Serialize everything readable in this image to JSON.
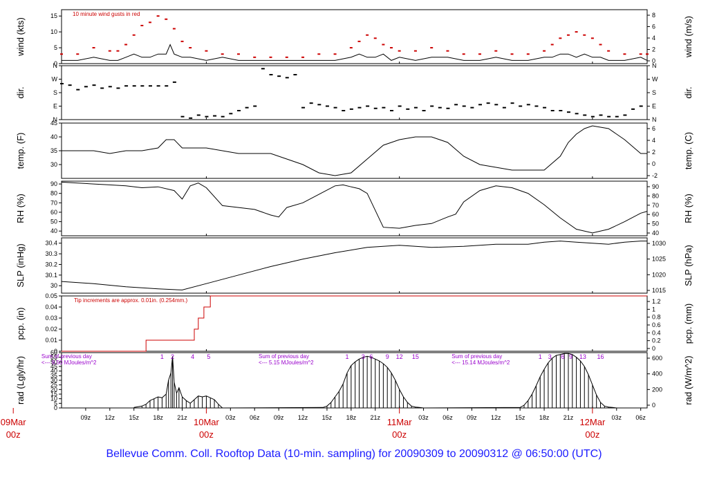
{
  "footer": "Bellevue Comm. Coll. Rooftop Data (10-min. sampling) for 20090309  to  20090312 @ 06:50:00  (UTC)",
  "colors": {
    "axis": "#000000",
    "gust": "#cc0000",
    "pcp": "#cc0000",
    "note": "#cc0000",
    "rad_note": "#9900cc",
    "date": "#cc0000",
    "footer": "#1a1aff"
  },
  "time_axis": {
    "start_hour": 6,
    "end_hour": 78.8,
    "hour_labels": [
      {
        "h": 9,
        "t": "09z"
      },
      {
        "h": 12,
        "t": "12z"
      },
      {
        "h": 15,
        "t": "15z"
      },
      {
        "h": 18,
        "t": "18z"
      },
      {
        "h": 21,
        "t": "21z"
      },
      {
        "h": 27,
        "t": "03z"
      },
      {
        "h": 30,
        "t": "06z"
      },
      {
        "h": 33,
        "t": "09z"
      },
      {
        "h": 36,
        "t": "12z"
      },
      {
        "h": 39,
        "t": "15z"
      },
      {
        "h": 42,
        "t": "18z"
      },
      {
        "h": 45,
        "t": "21z"
      },
      {
        "h": 51,
        "t": "03z"
      },
      {
        "h": 54,
        "t": "06z"
      },
      {
        "h": 57,
        "t": "09z"
      },
      {
        "h": 60,
        "t": "12z"
      },
      {
        "h": 63,
        "t": "15z"
      },
      {
        "h": 66,
        "t": "18z"
      },
      {
        "h": 69,
        "t": "21z"
      },
      {
        "h": 75,
        "t": "03z"
      },
      {
        "h": 78,
        "t": "06z"
      }
    ],
    "date_labels": [
      {
        "h": 0,
        "d": "09Mar",
        "z": "00z"
      },
      {
        "h": 24,
        "d": "10Mar",
        "z": "00z"
      },
      {
        "h": 48,
        "d": "11Mar",
        "z": "00z"
      },
      {
        "h": 72,
        "d": "12Mar",
        "z": "00z"
      }
    ]
  },
  "chart_data": [
    {
      "type": "line",
      "id": "wind",
      "ylabel": "wind (kts)",
      "ylabel2": "wind (m/s)",
      "annotation": "10  minute wind gusts in red",
      "ylim": [
        0,
        17
      ],
      "yticks": [
        0,
        5,
        10,
        15
      ],
      "y2ticks": [
        0,
        2,
        4,
        6,
        8
      ],
      "series": [
        {
          "x": [
            6,
            8,
            10,
            12,
            13,
            14,
            15,
            16,
            17,
            18,
            19,
            19.5,
            20,
            21,
            22,
            24,
            26,
            28,
            30,
            32,
            34,
            36,
            38,
            40,
            42,
            43,
            44,
            45,
            46,
            47,
            48,
            50,
            52,
            54,
            56,
            58,
            60,
            62,
            64,
            66,
            67,
            68,
            69,
            70,
            71,
            72,
            73,
            74,
            76,
            78,
            78.8
          ],
          "y": [
            1,
            1,
            2,
            1,
            1,
            2,
            3,
            2,
            2,
            3,
            3,
            6,
            3,
            2,
            2,
            1,
            2,
            1,
            1,
            1,
            1,
            1,
            1,
            1,
            2,
            3,
            2,
            2,
            3,
            1,
            2,
            1,
            2,
            2,
            1,
            1,
            2,
            1,
            1,
            2,
            2,
            3,
            3,
            2,
            3,
            2,
            2,
            1,
            1,
            2,
            1
          ]
        },
        {
          "name": "gust",
          "x": [
            6,
            8,
            10,
            12,
            13,
            14,
            15,
            16,
            17,
            18,
            19,
            20,
            21,
            22,
            24,
            26,
            28,
            30,
            32,
            34,
            36,
            38,
            40,
            42,
            43,
            44,
            45,
            46,
            47,
            48,
            50,
            52,
            54,
            56,
            58,
            60,
            62,
            64,
            66,
            67,
            68,
            69,
            70,
            71,
            72,
            73,
            74,
            76,
            78,
            78.8
          ],
          "y": [
            3,
            3,
            5,
            4,
            4,
            6,
            9,
            12,
            13,
            15,
            14,
            11,
            7,
            5,
            4,
            3,
            3,
            2,
            2,
            2,
            2,
            3,
            3,
            5,
            7,
            9,
            8,
            6,
            5,
            4,
            4,
            5,
            4,
            3,
            3,
            4,
            3,
            3,
            4,
            6,
            8,
            9,
            10,
            9,
            8,
            6,
            4,
            3,
            3,
            3
          ]
        }
      ]
    },
    {
      "type": "scatter",
      "id": "dir",
      "ylabel": "dir.",
      "ylabel2": "dir.",
      "ylim": [
        0,
        360
      ],
      "ytick_values": [
        0,
        90,
        180,
        270,
        360
      ],
      "ytick_labels": [
        "N",
        "E",
        "S",
        "W",
        "N"
      ],
      "x": [
        6,
        7,
        8,
        9,
        10,
        11,
        12,
        13,
        14,
        15,
        16,
        17,
        18,
        19,
        20,
        21,
        22,
        23,
        24,
        25,
        26,
        27,
        28,
        29,
        30,
        31,
        32,
        33,
        34,
        35,
        36,
        37,
        38,
        39,
        40,
        41,
        42,
        43,
        44,
        45,
        46,
        47,
        48,
        49,
        50,
        51,
        52,
        53,
        54,
        55,
        56,
        57,
        58,
        59,
        60,
        61,
        62,
        63,
        64,
        65,
        66,
        67,
        68,
        69,
        70,
        71,
        72,
        73,
        74,
        75,
        76,
        77,
        78
      ],
      "y": [
        240,
        230,
        200,
        220,
        230,
        210,
        220,
        210,
        225,
        225,
        225,
        225,
        225,
        225,
        250,
        20,
        10,
        30,
        20,
        25,
        20,
        40,
        60,
        80,
        90,
        340,
        300,
        290,
        280,
        300,
        80,
        110,
        100,
        90,
        80,
        60,
        70,
        80,
        90,
        75,
        80,
        60,
        90,
        70,
        80,
        60,
        90,
        80,
        75,
        100,
        90,
        80,
        100,
        110,
        100,
        80,
        110,
        90,
        100,
        90,
        80,
        60,
        60,
        50,
        40,
        30,
        20,
        30,
        20,
        20,
        30,
        70,
        90
      ]
    },
    {
      "type": "line",
      "id": "temp",
      "ylabel": "temp. (F)",
      "ylabel2": "temp. (C)",
      "ylim": [
        25,
        45
      ],
      "yticks": [
        30,
        35,
        40,
        45
      ],
      "y2ticks": [
        -2,
        0,
        2,
        4,
        6
      ],
      "x": [
        6,
        8,
        10,
        12,
        14,
        16,
        18,
        19,
        20,
        21,
        22,
        24,
        26,
        28,
        30,
        32,
        34,
        36,
        38,
        40,
        42,
        44,
        46,
        48,
        50,
        52,
        54,
        56,
        58,
        60,
        62,
        64,
        66,
        68,
        69,
        70,
        71,
        72,
        74,
        76,
        78,
        78.8
      ],
      "y": [
        35,
        35,
        35,
        34,
        35,
        35,
        36,
        39,
        39,
        36,
        36,
        36,
        35,
        34,
        34,
        34,
        32,
        30,
        27,
        26,
        27,
        32,
        37,
        39,
        40,
        40,
        38,
        33,
        30,
        29,
        28,
        28,
        28,
        33,
        38,
        41,
        43,
        44,
        43,
        39,
        34,
        34
      ]
    },
    {
      "type": "line",
      "id": "rh",
      "ylabel": "RH (%)",
      "ylabel2": "RH (%)",
      "ylim": [
        35,
        93
      ],
      "yticks": [
        40,
        50,
        60,
        70,
        80,
        90
      ],
      "y2ticks": [
        40,
        50,
        60,
        70,
        80,
        90
      ],
      "x": [
        6,
        8,
        10,
        12,
        14,
        16,
        18,
        20,
        21,
        22,
        23,
        24,
        26,
        28,
        30,
        32,
        33,
        34,
        36,
        38,
        40,
        41,
        42,
        43,
        44,
        46,
        48,
        50,
        52,
        54,
        55,
        56,
        58,
        60,
        62,
        64,
        66,
        68,
        70,
        72,
        74,
        76,
        78,
        78.8
      ],
      "y": [
        92,
        91,
        90,
        89,
        88,
        86,
        87,
        83,
        74,
        88,
        91,
        86,
        67,
        65,
        63,
        57,
        55,
        65,
        70,
        79,
        88,
        89,
        87,
        85,
        80,
        44,
        43,
        46,
        48,
        55,
        58,
        71,
        83,
        88,
        86,
        80,
        68,
        54,
        42,
        38,
        42,
        50,
        59,
        61
      ]
    },
    {
      "type": "line",
      "id": "slp",
      "ylabel": "SLP (inHg)",
      "ylabel2": "SLP (hPa)",
      "ylim": [
        29.93,
        30.45
      ],
      "yticks": [
        30.0,
        30.1,
        30.2,
        30.3,
        30.4
      ],
      "y2ticks": [
        1015,
        1020,
        1025,
        1030
      ],
      "x": [
        6,
        10,
        14,
        18,
        21,
        24,
        28,
        32,
        36,
        40,
        44,
        48,
        52,
        56,
        60,
        64,
        66,
        68,
        70,
        72,
        74,
        76,
        78,
        78.8
      ],
      "y": [
        30.04,
        30.02,
        29.99,
        29.97,
        29.96,
        30.02,
        30.1,
        30.18,
        30.25,
        30.31,
        30.36,
        30.38,
        30.36,
        30.37,
        30.39,
        30.39,
        30.41,
        30.42,
        30.41,
        30.4,
        30.39,
        30.41,
        30.42,
        30.42
      ]
    },
    {
      "type": "area",
      "id": "pcp",
      "ylabel": "pcp. (in)",
      "ylabel2": "pcp. (mm)",
      "annotation": "Tip increments are approx. 0.01in. (0.254mm.)",
      "ylim": [
        0,
        0.05
      ],
      "yticks": [
        0.0,
        0.01,
        0.02,
        0.03,
        0.04,
        0.05
      ],
      "y2ticks": [
        0,
        0.2,
        0.4,
        0.6,
        0.8,
        1.0,
        1.2
      ],
      "x": [
        6,
        16.5,
        16.5,
        22.5,
        22.5,
        23,
        23,
        23.7,
        23.7,
        24.5,
        24.5,
        78.8
      ],
      "y": [
        0,
        0,
        0.01,
        0.01,
        0.02,
        0.02,
        0.03,
        0.03,
        0.04,
        0.04,
        0.05,
        0.05
      ]
    },
    {
      "type": "bar",
      "id": "rad",
      "ylabel": "rad (Lgly/hr)",
      "ylabel2": "rad (W/m^2)",
      "ylim": [
        0,
        60
      ],
      "yticks": [
        0,
        5,
        10,
        15,
        20,
        25,
        30,
        35,
        40,
        45,
        50,
        55,
        60
      ],
      "y2ticks": [
        0,
        200,
        400,
        600
      ],
      "sums": [
        {
          "h": 3.5,
          "line1": "Sum of previous day",
          "line2": "<--- 9.50 MJoules/m^2"
        },
        {
          "h": 30.5,
          "line1": "Sum of previous day",
          "line2": "<--- 5.15 MJoules/m^2"
        },
        {
          "h": 54.5,
          "line1": "Sum of previous day",
          "line2": "<--- 15.14 MJoules/m^2"
        }
      ],
      "hour_marks": [
        {
          "h": 18.5,
          "t": "1"
        },
        {
          "h": 19.8,
          "t": "2"
        },
        {
          "h": 22.3,
          "t": "4"
        },
        {
          "h": 24.3,
          "t": "5"
        },
        {
          "h": 41.5,
          "t": "1"
        },
        {
          "h": 43.5,
          "t": "3"
        },
        {
          "h": 44.5,
          "t": "6"
        },
        {
          "h": 46.5,
          "t": "9"
        },
        {
          "h": 48.0,
          "t": "12"
        },
        {
          "h": 50.0,
          "t": "15"
        },
        {
          "h": 65.5,
          "t": "1"
        },
        {
          "h": 66.7,
          "t": "3"
        },
        {
          "h": 68.3,
          "t": "6"
        },
        {
          "h": 69.3,
          "t": "9"
        },
        {
          "h": 70.8,
          "t": "13"
        },
        {
          "h": 73.0,
          "t": "16"
        }
      ],
      "x": [
        15,
        16,
        16.5,
        17,
        17.5,
        18,
        18.5,
        19,
        19.3,
        19.6,
        19.8,
        20.0,
        20.3,
        20.6,
        21,
        21.5,
        22,
        22.5,
        23,
        23.5,
        24,
        24.5,
        25,
        25.5,
        26,
        38.5,
        39,
        39.5,
        40,
        40.5,
        41,
        41.5,
        42,
        42.5,
        43,
        43.5,
        44,
        44.5,
        45,
        45.5,
        46,
        46.5,
        47,
        47.5,
        48,
        48.5,
        49,
        49.5,
        50,
        50.5,
        51,
        63,
        63.5,
        64,
        64.5,
        65,
        65.5,
        66,
        66.5,
        67,
        67.5,
        68,
        68.5,
        69,
        69.5,
        70,
        70.5,
        71,
        71.5,
        72,
        72.5,
        73,
        73.5,
        74,
        74.5,
        75
      ],
      "y": [
        0.5,
        2,
        4,
        8,
        10,
        12,
        11,
        15,
        30,
        38,
        56,
        28,
        16,
        22,
        12,
        8,
        5,
        9,
        13,
        12,
        13,
        11,
        9,
        4,
        0,
        0.5,
        2,
        6,
        12,
        18,
        26,
        38,
        46,
        50,
        53,
        55,
        56,
        55,
        53,
        51,
        48,
        44,
        38,
        30,
        20,
        12,
        6,
        2,
        1,
        0.5,
        0,
        0.5,
        3,
        8,
        15,
        24,
        34,
        42,
        49,
        54,
        57,
        58,
        59,
        59,
        58,
        55,
        51,
        45,
        36,
        25,
        14,
        6,
        2,
        1,
        0.5,
        0
      ]
    }
  ]
}
